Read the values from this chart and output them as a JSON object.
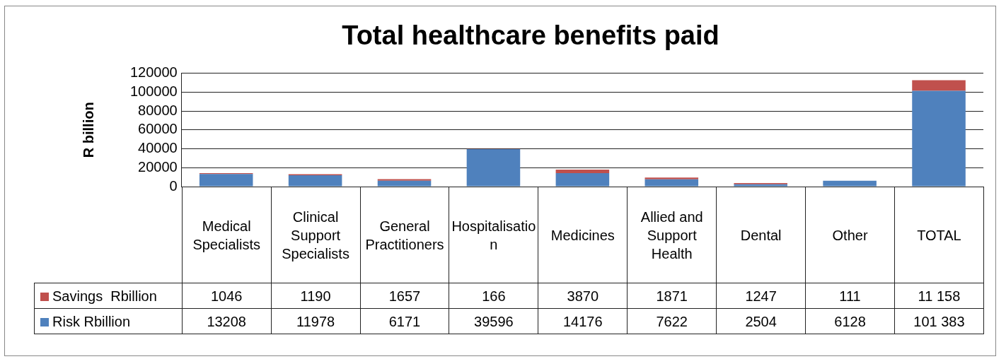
{
  "chart_data": {
    "type": "bar",
    "title": "Total healthcare benefits paid",
    "ylabel": "R billion",
    "categories": [
      "Medical Specialists",
      "Clinical Support Specialists",
      "General Practitioners",
      "Hospitalisation",
      "Medicines",
      "Allied and Support Health",
      "Dental",
      "Other",
      "TOTAL"
    ],
    "series": [
      {
        "name": "Risk Rbillion",
        "color": "#4f81bd",
        "values": [
          13208,
          11978,
          6171,
          39596,
          14176,
          7622,
          2504,
          6128,
          101383
        ],
        "value_labels": [
          "13208",
          "11978",
          "6171",
          "39596",
          "14176",
          "7622",
          "2504",
          "6128",
          "101 383"
        ]
      },
      {
        "name": "Savings  Rbillion",
        "color": "#c0504d",
        "values": [
          1046,
          1190,
          1657,
          166,
          3870,
          1871,
          1247,
          111,
          11158
        ],
        "value_labels": [
          "1046",
          "1190",
          "1657",
          "166",
          "3870",
          "1871",
          "1247",
          "111",
          "11 158"
        ]
      }
    ],
    "stacked": true,
    "ylim": [
      0,
      120000
    ],
    "yticks": [
      0,
      20000,
      40000,
      60000,
      80000,
      100000,
      120000
    ],
    "grid": "y",
    "legend": "bottom"
  }
}
